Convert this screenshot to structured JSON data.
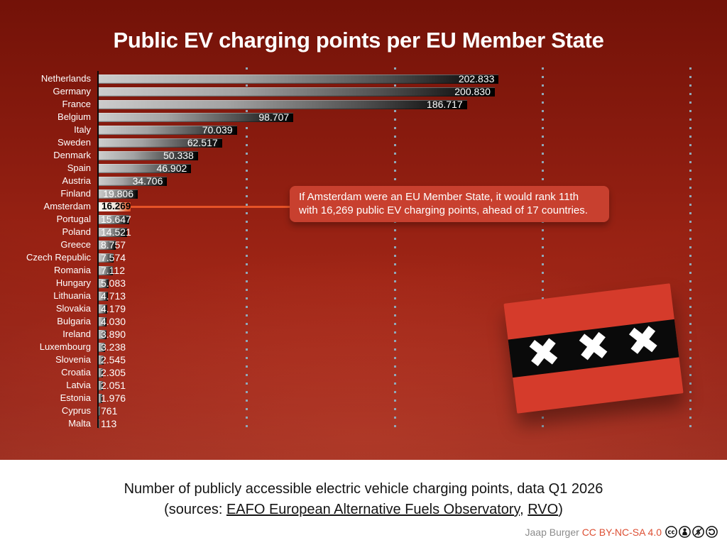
{
  "title": "Public EV charging points per EU Member State",
  "chart_data": {
    "type": "bar",
    "orientation": "horizontal",
    "title": "Public EV charging points per EU Member State",
    "xlabel": "",
    "ylabel": "",
    "xlim": [
      0,
      310000
    ],
    "legend": "none",
    "gridlines": {
      "style": "dotted-vertical",
      "values": [
        75000,
        150000,
        225000,
        300000
      ]
    },
    "highlight_category": "Amsterdam",
    "categories": [
      "Netherlands",
      "Germany",
      "France",
      "Belgium",
      "Italy",
      "Sweden",
      "Denmark",
      "Spain",
      "Austria",
      "Finland",
      "Amsterdam",
      "Portugal",
      "Poland",
      "Greece",
      "Czech Republic",
      "Romania",
      "Hungary",
      "Lithuania",
      "Slovakia",
      "Bulgaria",
      "Ireland",
      "Luxembourg",
      "Slovenia",
      "Croatia",
      "Latvia",
      "Estonia",
      "Cyprus",
      "Malta"
    ],
    "values": [
      202833,
      200830,
      186717,
      98707,
      70039,
      62517,
      50338,
      46902,
      34706,
      19806,
      16269,
      15647,
      14521,
      8757,
      7574,
      7112,
      5083,
      4713,
      4179,
      4030,
      3890,
      3238,
      2545,
      2305,
      2051,
      1976,
      761,
      113
    ],
    "value_labels": [
      "202.833",
      "200.830",
      "186.717",
      "98.707",
      "70.039",
      "62.517",
      "50.338",
      "46.902",
      "34.706",
      "19.806",
      "16.269",
      "15.647",
      "14.521",
      "8.757",
      "7.574",
      "7.112",
      "5.083",
      "4.713",
      "4.179",
      "4.030",
      "3.890",
      "3.238",
      "2.545",
      "2.305",
      "2.051",
      "1.976",
      "761",
      "113"
    ]
  },
  "annotation": {
    "line1": "If Amsterdam were an EU Member State, it would rank 11th",
    "line2": "with 16,269 public EV charging points, ahead of 17 countries."
  },
  "flag": {
    "name": "amsterdam-flag",
    "crosses": [
      "✖",
      "✖",
      "✖"
    ]
  },
  "footer": {
    "caption_line1": "Number of publicly accessible electric vehicle charging points, data Q1 2026",
    "caption_line2_prefix": "(sources: ",
    "source_link_1": "EAFO European Alternative Fuels Observatory",
    "caption_separator": ", ",
    "source_link_2": "RVO",
    "caption_line2_suffix": ")",
    "credit_author": "Jaap Burger ",
    "credit_license": "CC BY-NC-SA 4.0",
    "license_icons": [
      "cc-icon",
      "by-icon",
      "nc-icon",
      "sa-icon"
    ]
  },
  "colors": {
    "accent_orange": "#e65327",
    "annotation_red": "#c8402f",
    "flag_red": "#d53b2b",
    "gridline_blue": "#8fa8b8",
    "bar_gradient_light": "#cccccc",
    "bar_gradient_dark": "#000000",
    "background_top": "#731208",
    "background_bottom": "#c23b2a",
    "license_text": "#dd4f33"
  }
}
